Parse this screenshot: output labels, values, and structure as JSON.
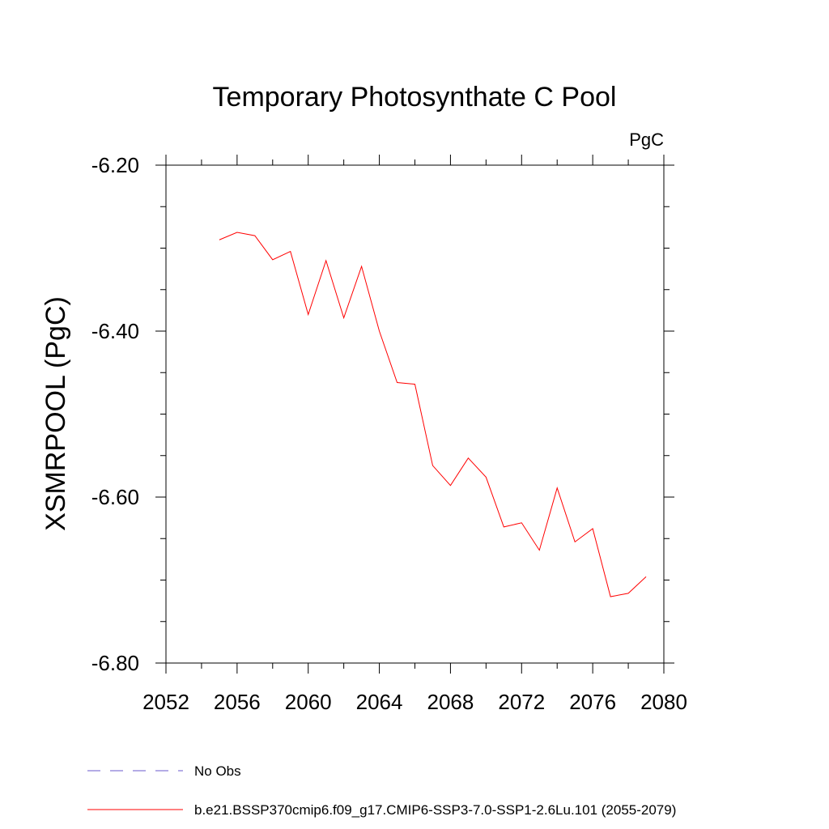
{
  "chart_data": {
    "type": "line",
    "title": "Temporary Photosynthate C Pool",
    "units": "PgC",
    "xlabel": "",
    "ylabel": "XSMRPOOL  (PgC)",
    "xlim": [
      2052,
      2080
    ],
    "ylim": [
      -6.8,
      -6.2
    ],
    "x_ticks": [
      2052,
      2056,
      2060,
      2064,
      2068,
      2072,
      2076,
      2080
    ],
    "x_tick_labels": [
      "2052",
      "2056",
      "2060",
      "2064",
      "2068",
      "2072",
      "2076",
      "2080"
    ],
    "x_minor_step": 2,
    "y_ticks": [
      -6.8,
      -6.6,
      -6.4,
      -6.2
    ],
    "y_tick_labels": [
      "-6.80",
      "-6.60",
      "-6.40",
      "-6.20"
    ],
    "y_minor_step": 0.05,
    "grid": false,
    "legend_position": "bottom-left",
    "series": [
      {
        "name": "b.e21.BSSP370cmip6.f09_g17.CMIP6-SSP3-7.0-SSP1-2.6Lu.101 (2055-2079)",
        "color": "#ff0000",
        "dash": "solid",
        "x": [
          2055,
          2056,
          2057,
          2058,
          2059,
          2060,
          2061,
          2062,
          2063,
          2064,
          2065,
          2066,
          2067,
          2068,
          2069,
          2070,
          2071,
          2072,
          2073,
          2074,
          2075,
          2076,
          2077,
          2078,
          2079
        ],
        "y": [
          -6.29,
          -6.281,
          -6.285,
          -6.314,
          -6.304,
          -6.38,
          -6.315,
          -6.384,
          -6.322,
          -6.4,
          -6.462,
          -6.464,
          -6.562,
          -6.586,
          -6.553,
          -6.576,
          -6.636,
          -6.631,
          -6.664,
          -6.589,
          -6.654,
          -6.638,
          -6.72,
          -6.716,
          -6.696
        ]
      }
    ],
    "legend": [
      {
        "label": "No Obs",
        "color": "#6a5acd",
        "dash": "dashed"
      },
      {
        "label": "b.e21.BSSP370cmip6.f09_g17.CMIP6-SSP3-7.0-SSP1-2.6Lu.101 (2055-2079)",
        "color": "#ff0000",
        "dash": "solid"
      }
    ]
  }
}
